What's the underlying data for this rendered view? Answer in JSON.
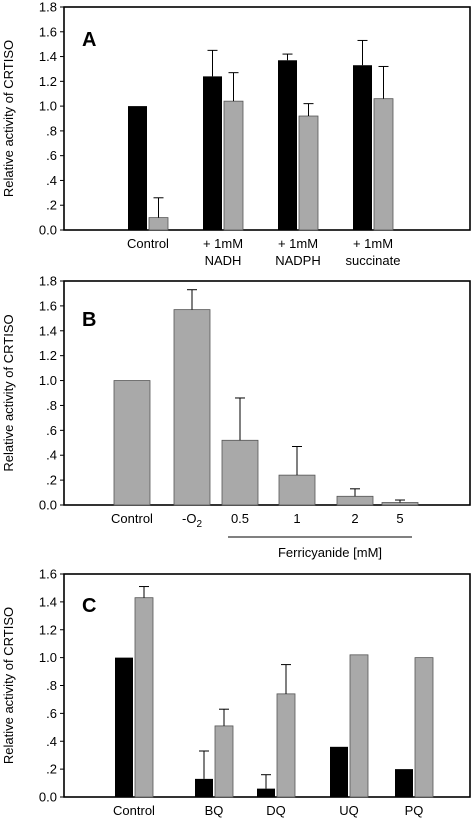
{
  "chart_data": [
    {
      "type": "bar",
      "panel_label": "A",
      "ylabel": "Relative activity of CRTISO",
      "ylim": [
        0,
        1.8
      ],
      "y_ticks": [
        "0.0",
        ".2",
        ".4",
        ".6",
        ".8",
        "1.0",
        "1.2",
        "1.4",
        "1.6",
        "1.8"
      ],
      "categories": [
        [
          "Control"
        ],
        [
          "+ 1mM",
          "NADH"
        ],
        [
          "+ 1mM",
          "NADPH"
        ],
        [
          "+ 1mM",
          "succinate"
        ]
      ],
      "series": [
        {
          "color": "#000000",
          "values": [
            1.0,
            1.24,
            1.37,
            1.33
          ],
          "errors": [
            0,
            0.21,
            0.05,
            0.2
          ]
        },
        {
          "color": "#a9a9a9",
          "values": [
            0.1,
            1.04,
            0.92,
            1.06
          ],
          "errors": [
            0.16,
            0.23,
            0.1,
            0.26
          ]
        }
      ]
    },
    {
      "type": "bar",
      "panel_label": "B",
      "ylabel": "Relative activity of CRTISO",
      "ylim": [
        0,
        1.8
      ],
      "y_ticks": [
        "0.0",
        ".2",
        ".4",
        ".6",
        ".8",
        "1.0",
        "1.2",
        "1.4",
        "1.6",
        "1.8"
      ],
      "categories": [
        "Control",
        "-O2",
        "0.5",
        "1",
        "2",
        "5"
      ],
      "group_label": "Ferricyanide [mM]",
      "series": [
        {
          "color": "#a9a9a9",
          "values": [
            1.0,
            1.57,
            0.52,
            0.24,
            0.07,
            0.02
          ],
          "errors": [
            0,
            0.16,
            0.34,
            0.23,
            0.06,
            0.02
          ]
        }
      ]
    },
    {
      "type": "bar",
      "panel_label": "C",
      "ylabel": "Relative activity of CRTISO",
      "ylim": [
        0,
        1.6
      ],
      "y_ticks": [
        "0.0",
        ".2",
        ".4",
        ".6",
        ".8",
        "1.0",
        "1.2",
        "1.4",
        "1.6"
      ],
      "categories": [
        "Control",
        "BQ",
        "DQ",
        "UQ",
        "PQ"
      ],
      "series": [
        {
          "color": "#000000",
          "values": [
            1.0,
            0.13,
            0.06,
            0.36,
            0.2
          ],
          "errors": [
            0,
            0.2,
            0.1,
            0,
            0
          ]
        },
        {
          "color": "#a9a9a9",
          "values": [
            1.43,
            0.51,
            0.74,
            1.02,
            1.0
          ],
          "errors": [
            0.08,
            0.12,
            0.21,
            0,
            0
          ]
        }
      ]
    }
  ]
}
